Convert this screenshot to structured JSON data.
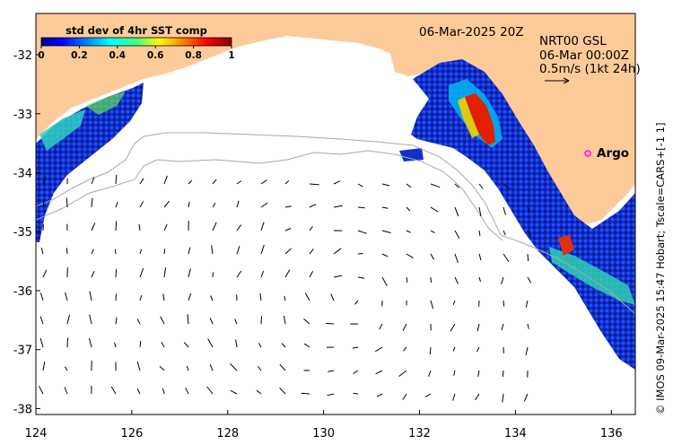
{
  "map": {
    "date_label": "06-Mar-2025 20Z",
    "colorbar": {
      "title": "std dev of 4hr SST comp",
      "ticks": [
        "0",
        "0.2",
        "0.4",
        "0.6",
        "0.8",
        "1"
      ],
      "range": [
        0,
        1
      ],
      "colormap": "jet"
    },
    "info": {
      "line1": "NRT00 GSL",
      "line2": "06-Mar 00:00Z",
      "line3": "0.5m/s (1kt 24h)"
    },
    "argo_label": "Argo",
    "credit": "© IMOS 09-Mar-2025 15:47 Hobart; Tscale=CARS+[-1 1]",
    "lon_ticks": [
      "124",
      "126",
      "128",
      "130",
      "132",
      "134",
      "136"
    ],
    "lat_ticks": [
      "-32",
      "-33",
      "-34",
      "-35",
      "-36",
      "-37",
      "-38"
    ],
    "lon_range": [
      124,
      136.5
    ],
    "lat_range": [
      -38.1,
      -31.3
    ],
    "colors": {
      "land": "#fdcb99",
      "ocean": "#ffffff",
      "argo_marker": "#ff00ff",
      "contour": "#a8a8a8"
    }
  }
}
